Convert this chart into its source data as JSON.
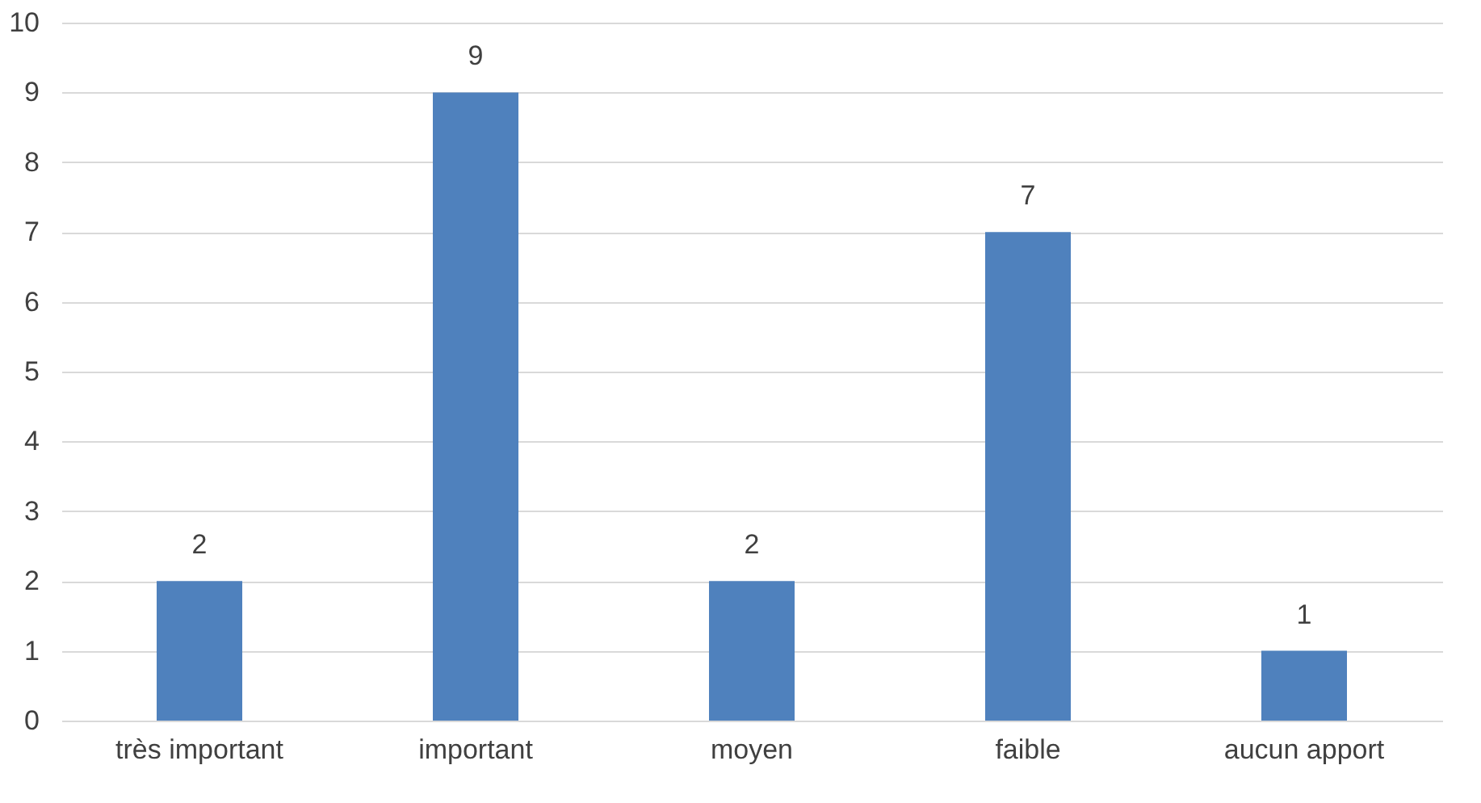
{
  "chart_data": {
    "type": "bar",
    "categories": [
      "très important",
      "important",
      "moyen",
      "faible",
      "aucun apport"
    ],
    "values": [
      2,
      9,
      2,
      7,
      1
    ],
    "color": "#4f81bd",
    "ylim": [
      0,
      10
    ],
    "yticks": [
      0,
      1,
      2,
      3,
      4,
      5,
      6,
      7,
      8,
      9,
      10
    ],
    "grid": "y",
    "data_labels": true
  }
}
